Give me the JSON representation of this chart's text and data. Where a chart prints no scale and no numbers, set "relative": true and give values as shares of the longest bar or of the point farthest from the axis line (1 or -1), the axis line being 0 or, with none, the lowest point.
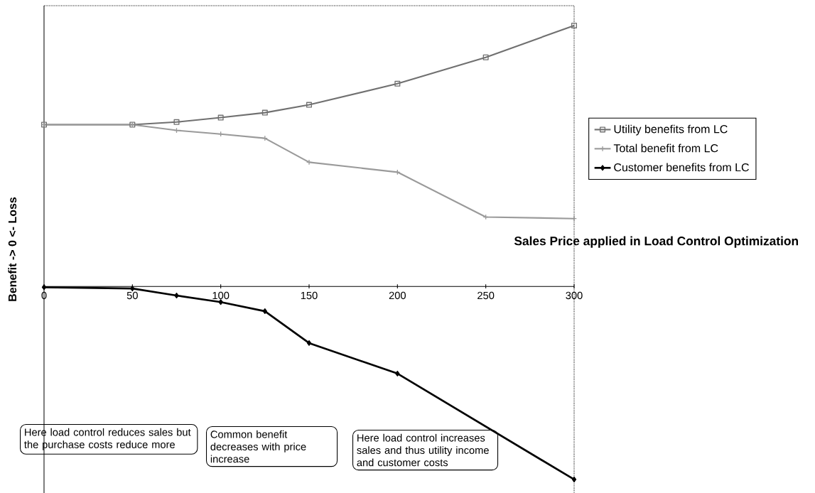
{
  "chart_data": {
    "type": "line",
    "relative": true,
    "xlabel": "Sales Price applied in Load Control Optimization",
    "ylabel": "Benefit -> 0 <- Loss",
    "x": [
      0,
      50,
      75,
      100,
      125,
      150,
      200,
      250,
      300
    ],
    "xlim": [
      0,
      300
    ],
    "xticks": [
      0,
      50,
      100,
      150,
      200,
      250,
      300
    ],
    "legend": "right",
    "series": [
      {
        "name": "Utility benefits from LC",
        "color": "#707070",
        "marker": "square",
        "values": [
          0.62,
          0.62,
          0.63,
          0.647,
          0.666,
          0.696,
          0.777,
          0.878,
          1
        ]
      },
      {
        "name": "Total benefit from LC",
        "color": "#9a9a9a",
        "marker": "cross",
        "values": [
          0.62,
          0.62,
          0.598,
          0.584,
          0.568,
          0.476,
          0.438,
          0.266,
          0.26
        ]
      },
      {
        "name": "Customer benefits from LC",
        "color": "#000000",
        "marker": "diamond",
        "x": [
          0,
          50,
          75,
          100,
          125,
          150,
          200,
          300
        ],
        "values": [
          -0.003,
          -0.008,
          -0.035,
          -0.06,
          -0.095,
          -0.217,
          -0.334,
          -0.74
        ]
      }
    ],
    "annotations": [
      "Here load control reduces sales but the purchase costs reduce more",
      "Common benefit decreases with price increase",
      "Here load control increases sales and thus utility income and customer costs"
    ]
  }
}
